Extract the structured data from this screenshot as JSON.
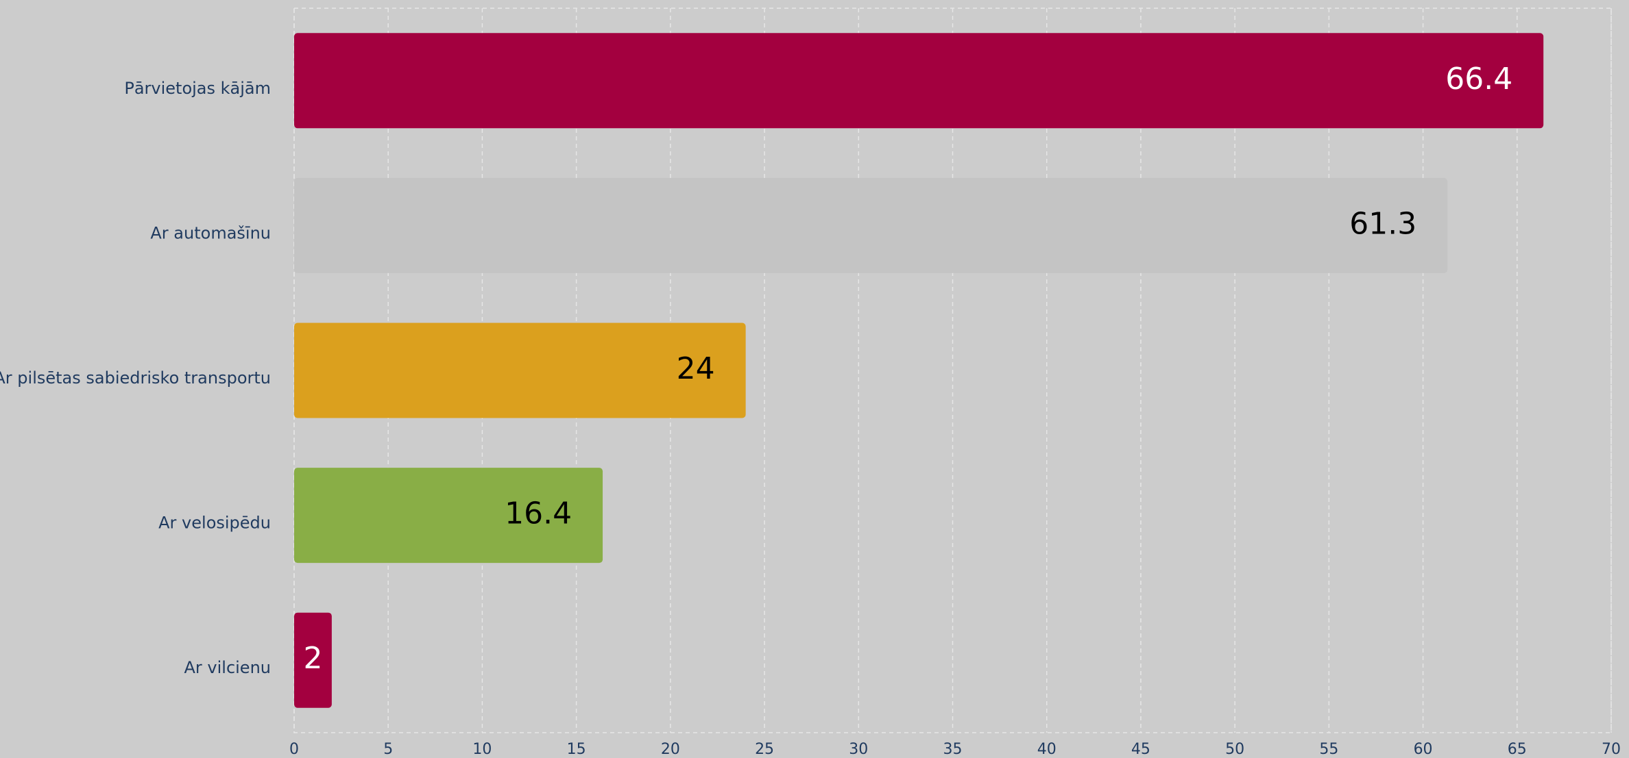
{
  "chart_data": {
    "type": "hbar",
    "categories": [
      "Pārvietojas kājām",
      "Ar automašīnu",
      "Ar pilsētas sabiedrisko transportu",
      "Ar velosipēdu",
      "Ar vilcienu"
    ],
    "values": [
      66.4,
      61.3,
      24,
      16.4,
      2
    ],
    "colors": [
      "#a3003f",
      "#c4c4c4",
      "#dba01e",
      "#89ae46",
      "#a3003f"
    ],
    "label_colors": [
      "#ffffff",
      "#000000",
      "#000000",
      "#000000",
      "#ffffff"
    ],
    "xlim": [
      0,
      70
    ],
    "xticks": [
      0,
      5,
      10,
      15,
      20,
      25,
      30,
      35,
      40,
      45,
      50,
      55,
      60,
      65,
      70
    ],
    "grid": true
  }
}
